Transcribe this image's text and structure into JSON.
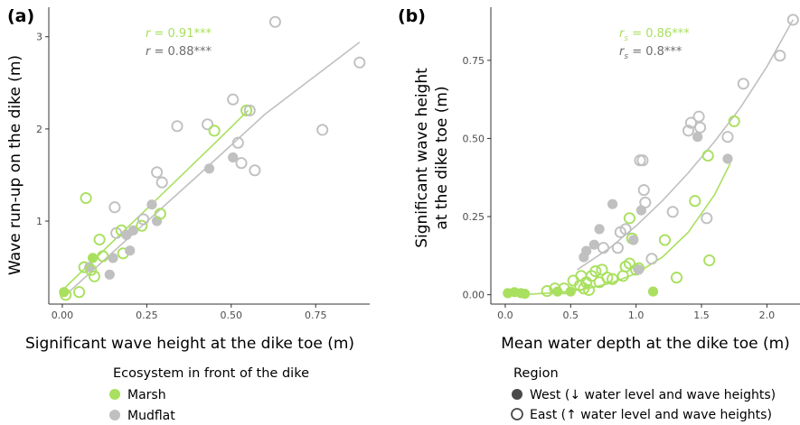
{
  "colors": {
    "marsh": "#a9e05f",
    "mudflat": "#c0c0c0",
    "west": "#4a4a4a",
    "east": "#4a4a4a",
    "axis": "#333333",
    "tick_text": "#4d4d4d",
    "corr_marsh": "#a9e05f",
    "corr_mudflat": "#6e6e6e"
  },
  "legends": {
    "ecosystem": {
      "title": "Ecosystem in front of the dike",
      "items": [
        {
          "label": "Marsh",
          "color": "#a9e05f",
          "marker": "filled-circle"
        },
        {
          "label": "Mudflat",
          "color": "#c0c0c0",
          "marker": "filled-circle"
        }
      ]
    },
    "region": {
      "title": "Region",
      "items": [
        {
          "label": "West (↓ water level and wave heights)",
          "marker": "filled-circle"
        },
        {
          "label": "East (↑ water level and wave heights)",
          "marker": "open-circle"
        }
      ]
    }
  },
  "chart_data": [
    {
      "panel": "(a)",
      "type": "scatter",
      "xlabel": "Significant wave height at the dike toe (m)",
      "ylabel": "Wave run-up on the dike (m)",
      "xlim": [
        -0.04,
        0.91
      ],
      "ylim": [
        0.1,
        3.32
      ],
      "xticks": [
        0,
        0.25,
        0.5,
        0.75
      ],
      "xtick_labels": [
        "0.00",
        "0.25",
        "0.50",
        "0.75"
      ],
      "yticks": [
        1,
        2,
        3
      ],
      "ytick_labels": [
        "1",
        "2",
        "3"
      ],
      "annotations": [
        {
          "prefix": "r",
          "text": " = 0.91***",
          "group": "marsh"
        },
        {
          "prefix": "r",
          "text": " = 0.88***",
          "group": "mudflat"
        }
      ],
      "fits": [
        {
          "group": "mudflat",
          "x": [
            0.01,
            0.2,
            0.4,
            0.6,
            0.88
          ],
          "y": [
            0.2,
            0.83,
            1.49,
            2.16,
            2.94
          ]
        },
        {
          "group": "marsh",
          "x": [
            0.0,
            0.15,
            0.3,
            0.45,
            0.55
          ],
          "y": [
            0.25,
            0.78,
            1.31,
            1.84,
            2.2
          ]
        }
      ],
      "points": [
        {
          "x": 0.005,
          "y": 0.23,
          "eco": "marsh",
          "region": "west"
        },
        {
          "x": 0.01,
          "y": 0.2,
          "eco": "marsh",
          "region": "east"
        },
        {
          "x": 0.05,
          "y": 0.23,
          "eco": "marsh",
          "region": "east"
        },
        {
          "x": 0.065,
          "y": 0.5,
          "eco": "marsh",
          "region": "east"
        },
        {
          "x": 0.07,
          "y": 1.25,
          "eco": "marsh",
          "region": "east"
        },
        {
          "x": 0.08,
          "y": 0.5,
          "eco": "mudflat",
          "region": "west"
        },
        {
          "x": 0.085,
          "y": 0.47,
          "eco": "marsh",
          "region": "east"
        },
        {
          "x": 0.09,
          "y": 0.6,
          "eco": "marsh",
          "region": "west"
        },
        {
          "x": 0.095,
          "y": 0.4,
          "eco": "marsh",
          "region": "east"
        },
        {
          "x": 0.11,
          "y": 0.8,
          "eco": "marsh",
          "region": "east"
        },
        {
          "x": 0.12,
          "y": 0.62,
          "eco": "marsh",
          "region": "east"
        },
        {
          "x": 0.14,
          "y": 0.42,
          "eco": "mudflat",
          "region": "west"
        },
        {
          "x": 0.15,
          "y": 0.6,
          "eco": "mudflat",
          "region": "west"
        },
        {
          "x": 0.155,
          "y": 1.15,
          "eco": "mudflat",
          "region": "east"
        },
        {
          "x": 0.16,
          "y": 0.87,
          "eco": "mudflat",
          "region": "east"
        },
        {
          "x": 0.175,
          "y": 0.9,
          "eco": "marsh",
          "region": "east"
        },
        {
          "x": 0.18,
          "y": 0.65,
          "eco": "marsh",
          "region": "east"
        },
        {
          "x": 0.19,
          "y": 0.85,
          "eco": "mudflat",
          "region": "west"
        },
        {
          "x": 0.2,
          "y": 0.68,
          "eco": "mudflat",
          "region": "west"
        },
        {
          "x": 0.21,
          "y": 0.9,
          "eco": "mudflat",
          "region": "west"
        },
        {
          "x": 0.235,
          "y": 0.95,
          "eco": "marsh",
          "region": "east"
        },
        {
          "x": 0.24,
          "y": 1.02,
          "eco": "mudflat",
          "region": "east"
        },
        {
          "x": 0.265,
          "y": 1.18,
          "eco": "mudflat",
          "region": "west"
        },
        {
          "x": 0.28,
          "y": 1.0,
          "eco": "mudflat",
          "region": "west"
        },
        {
          "x": 0.28,
          "y": 1.53,
          "eco": "mudflat",
          "region": "east"
        },
        {
          "x": 0.29,
          "y": 1.08,
          "eco": "marsh",
          "region": "east"
        },
        {
          "x": 0.295,
          "y": 1.42,
          "eco": "mudflat",
          "region": "east"
        },
        {
          "x": 0.34,
          "y": 2.03,
          "eco": "mudflat",
          "region": "east"
        },
        {
          "x": 0.43,
          "y": 2.05,
          "eco": "mudflat",
          "region": "east"
        },
        {
          "x": 0.435,
          "y": 1.57,
          "eco": "mudflat",
          "region": "west"
        },
        {
          "x": 0.45,
          "y": 1.98,
          "eco": "marsh",
          "region": "east"
        },
        {
          "x": 0.505,
          "y": 2.32,
          "eco": "mudflat",
          "region": "east"
        },
        {
          "x": 0.505,
          "y": 1.69,
          "eco": "mudflat",
          "region": "west"
        },
        {
          "x": 0.52,
          "y": 1.85,
          "eco": "mudflat",
          "region": "east"
        },
        {
          "x": 0.53,
          "y": 1.63,
          "eco": "mudflat",
          "region": "east"
        },
        {
          "x": 0.545,
          "y": 2.2,
          "eco": "marsh",
          "region": "east"
        },
        {
          "x": 0.555,
          "y": 2.2,
          "eco": "mudflat",
          "region": "east"
        },
        {
          "x": 0.57,
          "y": 1.55,
          "eco": "mudflat",
          "region": "east"
        },
        {
          "x": 0.63,
          "y": 3.16,
          "eco": "mudflat",
          "region": "east"
        },
        {
          "x": 0.77,
          "y": 1.99,
          "eco": "mudflat",
          "region": "east"
        },
        {
          "x": 0.88,
          "y": 2.72,
          "eco": "mudflat",
          "region": "east"
        }
      ]
    },
    {
      "panel": "(b)",
      "type": "scatter",
      "xlabel": "Mean water depth at the dike toe (m)",
      "ylabel_lines": [
        "Significant wave height",
        "at the dike toe (m)"
      ],
      "xlim": [
        -0.11,
        2.26
      ],
      "ylim": [
        -0.03,
        0.92
      ],
      "xticks": [
        0,
        0.5,
        1,
        1.5,
        2
      ],
      "xtick_labels": [
        "0.0",
        "0.5",
        "1.0",
        "1.5",
        "2.0"
      ],
      "yticks": [
        0,
        0.25,
        0.5,
        0.75
      ],
      "ytick_labels": [
        "0.00",
        "0.25",
        "0.50",
        "0.75"
      ],
      "annotations": [
        {
          "prefix": "r",
          "subscript": "s",
          "text": " = 0.86***",
          "group": "marsh"
        },
        {
          "prefix": "r",
          "subscript": "s",
          "text": " = 0.8***",
          "group": "mudflat"
        }
      ],
      "fits": [
        {
          "group": "mudflat",
          "x": [
            0.55,
            0.8,
            1.0,
            1.2,
            1.4,
            1.6,
            1.8,
            2.0,
            2.2
          ],
          "y": [
            0.08,
            0.15,
            0.22,
            0.3,
            0.39,
            0.49,
            0.6,
            0.73,
            0.88
          ]
        },
        {
          "group": "marsh",
          "x": [
            0.0,
            0.2,
            0.4,
            0.6,
            0.8,
            1.0,
            1.2,
            1.4,
            1.6,
            1.72
          ],
          "y": [
            0.0,
            0.002,
            0.007,
            0.017,
            0.036,
            0.068,
            0.12,
            0.2,
            0.32,
            0.42
          ]
        }
      ],
      "points": [
        {
          "x": 0.02,
          "y": 0.005,
          "eco": "marsh",
          "region": "west"
        },
        {
          "x": 0.07,
          "y": 0.008,
          "eco": "marsh",
          "region": "west"
        },
        {
          "x": 0.12,
          "y": 0.005,
          "eco": "marsh",
          "region": "west"
        },
        {
          "x": 0.15,
          "y": 0.003,
          "eco": "marsh",
          "region": "west"
        },
        {
          "x": 0.32,
          "y": 0.012,
          "eco": "marsh",
          "region": "east"
        },
        {
          "x": 0.38,
          "y": 0.02,
          "eco": "marsh",
          "region": "east"
        },
        {
          "x": 0.4,
          "y": 0.01,
          "eco": "marsh",
          "region": "west"
        },
        {
          "x": 0.45,
          "y": 0.02,
          "eco": "marsh",
          "region": "east"
        },
        {
          "x": 0.5,
          "y": 0.01,
          "eco": "marsh",
          "region": "west"
        },
        {
          "x": 0.52,
          "y": 0.045,
          "eco": "marsh",
          "region": "east"
        },
        {
          "x": 0.57,
          "y": 0.03,
          "eco": "marsh",
          "region": "east"
        },
        {
          "x": 0.58,
          "y": 0.06,
          "eco": "marsh",
          "region": "east"
        },
        {
          "x": 0.6,
          "y": 0.02,
          "eco": "marsh",
          "region": "east"
        },
        {
          "x": 0.62,
          "y": 0.04,
          "eco": "marsh",
          "region": "east"
        },
        {
          "x": 0.64,
          "y": 0.015,
          "eco": "marsh",
          "region": "east"
        },
        {
          "x": 0.66,
          "y": 0.06,
          "eco": "marsh",
          "region": "east"
        },
        {
          "x": 0.69,
          "y": 0.075,
          "eco": "marsh",
          "region": "east"
        },
        {
          "x": 0.72,
          "y": 0.04,
          "eco": "marsh",
          "region": "east"
        },
        {
          "x": 0.74,
          "y": 0.08,
          "eco": "marsh",
          "region": "east"
        },
        {
          "x": 0.78,
          "y": 0.055,
          "eco": "marsh",
          "region": "east"
        },
        {
          "x": 0.82,
          "y": 0.05,
          "eco": "marsh",
          "region": "east"
        },
        {
          "x": 0.9,
          "y": 0.06,
          "eco": "marsh",
          "region": "east"
        },
        {
          "x": 0.92,
          "y": 0.09,
          "eco": "marsh",
          "region": "east"
        },
        {
          "x": 0.95,
          "y": 0.1,
          "eco": "marsh",
          "region": "east"
        },
        {
          "x": 1.0,
          "y": 0.08,
          "eco": "marsh",
          "region": "east"
        },
        {
          "x": 1.02,
          "y": 0.085,
          "eco": "marsh",
          "region": "east"
        },
        {
          "x": 0.95,
          "y": 0.245,
          "eco": "marsh",
          "region": "east"
        },
        {
          "x": 0.97,
          "y": 0.18,
          "eco": "marsh",
          "region": "east"
        },
        {
          "x": 1.13,
          "y": 0.01,
          "eco": "marsh",
          "region": "west"
        },
        {
          "x": 1.22,
          "y": 0.175,
          "eco": "marsh",
          "region": "east"
        },
        {
          "x": 1.31,
          "y": 0.055,
          "eco": "marsh",
          "region": "east"
        },
        {
          "x": 1.45,
          "y": 0.3,
          "eco": "marsh",
          "region": "east"
        },
        {
          "x": 1.55,
          "y": 0.445,
          "eco": "marsh",
          "region": "east"
        },
        {
          "x": 1.56,
          "y": 0.11,
          "eco": "marsh",
          "region": "east"
        },
        {
          "x": 1.75,
          "y": 0.555,
          "eco": "marsh",
          "region": "east"
        },
        {
          "x": 0.6,
          "y": 0.12,
          "eco": "mudflat",
          "region": "west"
        },
        {
          "x": 0.62,
          "y": 0.14,
          "eco": "mudflat",
          "region": "west"
        },
        {
          "x": 0.68,
          "y": 0.16,
          "eco": "mudflat",
          "region": "west"
        },
        {
          "x": 0.72,
          "y": 0.21,
          "eco": "mudflat",
          "region": "west"
        },
        {
          "x": 0.75,
          "y": 0.15,
          "eco": "mudflat",
          "region": "east"
        },
        {
          "x": 0.82,
          "y": 0.29,
          "eco": "mudflat",
          "region": "west"
        },
        {
          "x": 0.86,
          "y": 0.15,
          "eco": "mudflat",
          "region": "east"
        },
        {
          "x": 0.88,
          "y": 0.2,
          "eco": "mudflat",
          "region": "east"
        },
        {
          "x": 0.92,
          "y": 0.21,
          "eco": "mudflat",
          "region": "east"
        },
        {
          "x": 0.98,
          "y": 0.175,
          "eco": "mudflat",
          "region": "west"
        },
        {
          "x": 1.02,
          "y": 0.08,
          "eco": "mudflat",
          "region": "west"
        },
        {
          "x": 1.03,
          "y": 0.43,
          "eco": "mudflat",
          "region": "east"
        },
        {
          "x": 1.05,
          "y": 0.43,
          "eco": "mudflat",
          "region": "east"
        },
        {
          "x": 1.04,
          "y": 0.27,
          "eco": "mudflat",
          "region": "west"
        },
        {
          "x": 1.06,
          "y": 0.335,
          "eco": "mudflat",
          "region": "east"
        },
        {
          "x": 1.07,
          "y": 0.295,
          "eco": "mudflat",
          "region": "east"
        },
        {
          "x": 1.12,
          "y": 0.115,
          "eco": "mudflat",
          "region": "east"
        },
        {
          "x": 1.28,
          "y": 0.265,
          "eco": "mudflat",
          "region": "east"
        },
        {
          "x": 1.4,
          "y": 0.525,
          "eco": "mudflat",
          "region": "east"
        },
        {
          "x": 1.42,
          "y": 0.55,
          "eco": "mudflat",
          "region": "east"
        },
        {
          "x": 1.47,
          "y": 0.505,
          "eco": "mudflat",
          "region": "west"
        },
        {
          "x": 1.48,
          "y": 0.57,
          "eco": "mudflat",
          "region": "east"
        },
        {
          "x": 1.49,
          "y": 0.535,
          "eco": "mudflat",
          "region": "east"
        },
        {
          "x": 1.54,
          "y": 0.245,
          "eco": "mudflat",
          "region": "east"
        },
        {
          "x": 1.7,
          "y": 0.435,
          "eco": "mudflat",
          "region": "west"
        },
        {
          "x": 1.7,
          "y": 0.505,
          "eco": "mudflat",
          "region": "east"
        },
        {
          "x": 1.82,
          "y": 0.675,
          "eco": "mudflat",
          "region": "east"
        },
        {
          "x": 2.1,
          "y": 0.765,
          "eco": "mudflat",
          "region": "east"
        },
        {
          "x": 2.2,
          "y": 0.88,
          "eco": "mudflat",
          "region": "east"
        }
      ]
    }
  ]
}
